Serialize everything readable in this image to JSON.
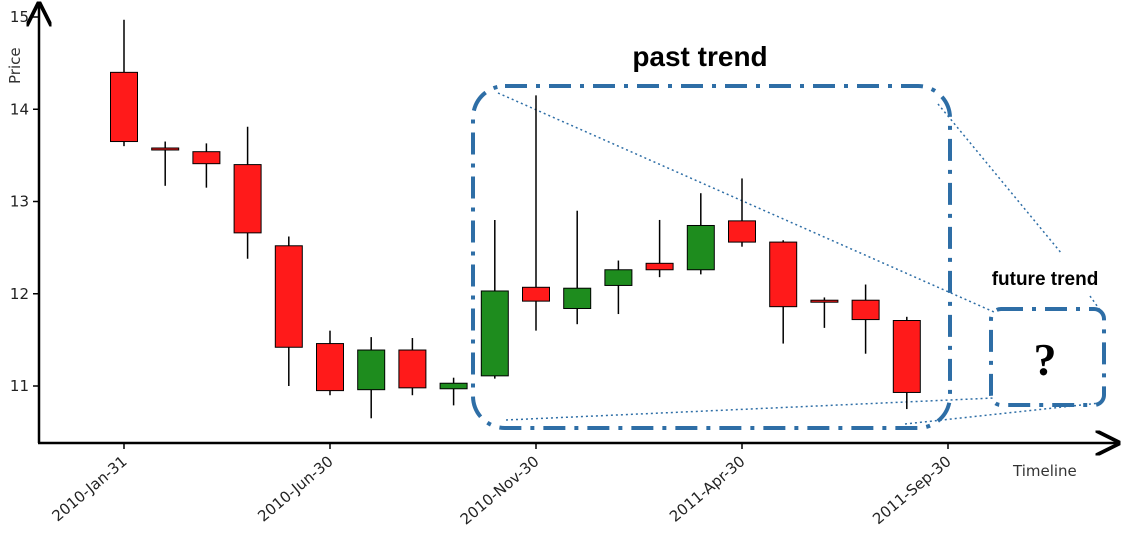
{
  "chart_data": {
    "type": "candlestick",
    "xlabel": "Timeline",
    "ylabel": "Price",
    "ylim": [
      10.45,
      15.1
    ],
    "yticks": [
      11,
      12,
      13,
      14,
      15
    ],
    "xticks": [
      "2010-Jan-31",
      "2010-Jun-30",
      "2010-Nov-30",
      "2011-Apr-30",
      "2011-Sep-30"
    ],
    "colors": {
      "down": "#ff1a1a",
      "up": "#1e8c1e",
      "frame": "#2e6ea6"
    },
    "candles": [
      {
        "open": 14.4,
        "high": 14.97,
        "low": 13.6,
        "close": 13.65
      },
      {
        "open": 13.58,
        "high": 13.65,
        "low": 13.17,
        "close": 13.56
      },
      {
        "open": 13.54,
        "high": 13.63,
        "low": 13.15,
        "close": 13.41
      },
      {
        "open": 13.4,
        "high": 13.81,
        "low": 12.38,
        "close": 12.66
      },
      {
        "open": 12.52,
        "high": 12.62,
        "low": 11.0,
        "close": 11.42
      },
      {
        "open": 11.46,
        "high": 11.6,
        "low": 10.9,
        "close": 10.95
      },
      {
        "open": 10.96,
        "high": 11.53,
        "low": 10.65,
        "close": 11.39
      },
      {
        "open": 11.39,
        "high": 11.52,
        "low": 10.9,
        "close": 10.98
      },
      {
        "open": 10.97,
        "high": 11.09,
        "low": 10.79,
        "close": 11.03
      },
      {
        "open": 11.11,
        "high": 12.8,
        "low": 11.08,
        "close": 12.03
      },
      {
        "open": 12.07,
        "high": 14.15,
        "low": 11.6,
        "close": 11.92
      },
      {
        "open": 11.84,
        "high": 12.9,
        "low": 11.67,
        "close": 12.06
      },
      {
        "open": 12.09,
        "high": 12.36,
        "low": 11.78,
        "close": 12.26
      },
      {
        "open": 12.33,
        "high": 12.8,
        "low": 12.18,
        "close": 12.26
      },
      {
        "open": 12.26,
        "high": 13.09,
        "low": 12.21,
        "close": 12.74
      },
      {
        "open": 12.79,
        "high": 13.25,
        "low": 12.51,
        "close": 12.56
      },
      {
        "open": 12.56,
        "high": 12.58,
        "low": 11.46,
        "close": 11.86
      },
      {
        "open": 11.93,
        "high": 11.96,
        "low": 11.63,
        "close": 11.93
      },
      {
        "open": 11.93,
        "high": 12.1,
        "low": 11.35,
        "close": 11.72
      },
      {
        "open": 11.71,
        "high": 11.75,
        "low": 10.75,
        "close": 10.93
      }
    ]
  },
  "annotations": {
    "past_label": "past trend",
    "future_label": "future trend",
    "question": "?"
  }
}
